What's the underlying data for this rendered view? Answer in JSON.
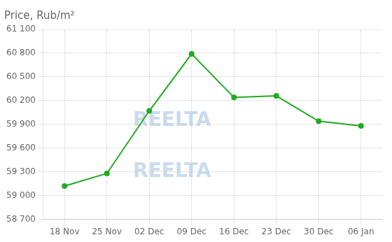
{
  "chart_data": {
    "type": "line",
    "title": "Price, Rub/m²",
    "categories": [
      "18 Nov",
      "25 Nov",
      "02 Dec",
      "09 Dec",
      "16 Dec",
      "23 Dec",
      "30 Dec",
      "06 Jan"
    ],
    "values": [
      59120,
      59280,
      60070,
      60790,
      60240,
      60260,
      59940,
      59880
    ],
    "color": "#22aa22",
    "marker": "circle",
    "ylim": [
      58700,
      61100
    ],
    "yticks": [
      {
        "value": 58700,
        "label": "58 700"
      },
      {
        "value": 59000,
        "label": "59 000"
      },
      {
        "value": 59300,
        "label": "59 300"
      },
      {
        "value": 59600,
        "label": "59 600"
      },
      {
        "value": 59900,
        "label": "59 900"
      },
      {
        "value": 60200,
        "label": "60 200"
      },
      {
        "value": 60500,
        "label": "60 500"
      },
      {
        "value": 60800,
        "label": "60 800"
      },
      {
        "value": 61100,
        "label": "61 100"
      }
    ],
    "grid": true,
    "annotations": [
      "REELTA",
      "REELTA"
    ]
  }
}
